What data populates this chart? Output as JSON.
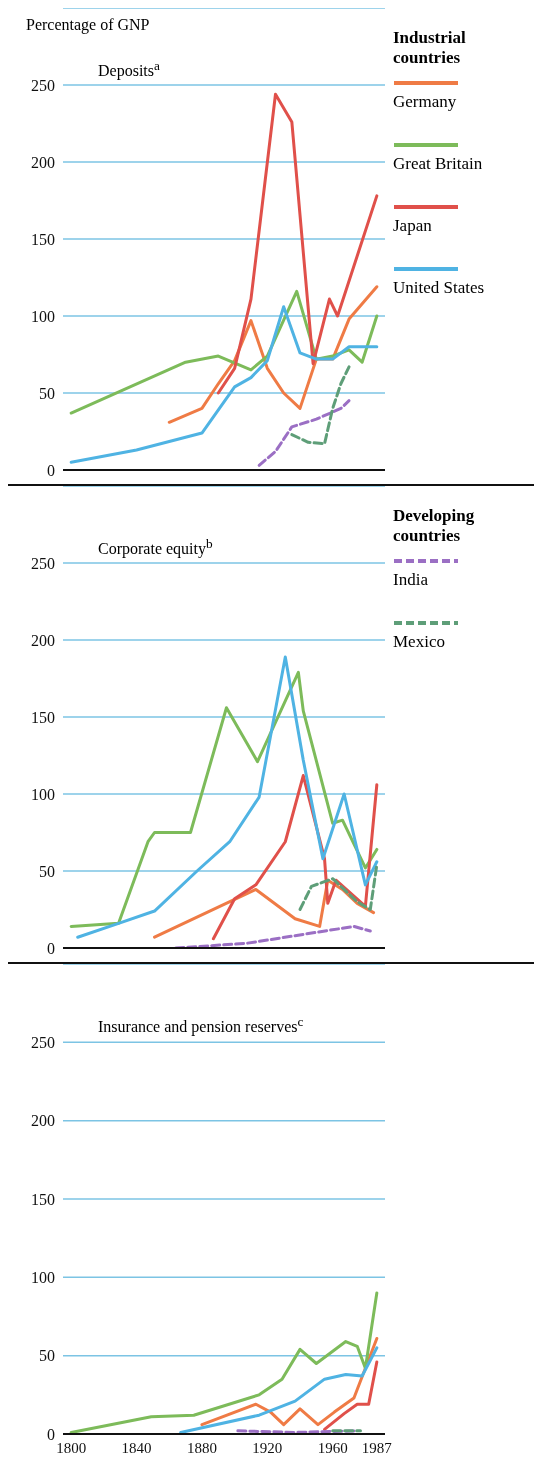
{
  "chart_data": [
    {
      "type": "line",
      "title": "Deposits$^{a}$",
      "ylabel": "Percentage of GNP",
      "legend_title": "Industrial countries",
      "legend": "right",
      "grid": "y",
      "tick_labels": "y",
      "xlim": [
        1795,
        1992
      ],
      "ylim": [
        0,
        300
      ],
      "yticks": [
        0,
        50,
        100,
        150,
        200,
        250
      ],
      "series": [
        {
          "name": "Germany",
          "color": "#ef7b45",
          "x": [
            1860,
            1880,
            1890,
            1900,
            1910,
            1920,
            1930,
            1940,
            1950,
            1960,
            1970,
            1987
          ],
          "values": [
            31,
            40,
            56,
            71,
            97,
            66,
            50,
            40,
            72,
            72,
            98,
            119
          ]
        },
        {
          "name": "Great Britain",
          "color": "#7dbb5a",
          "x": [
            1800,
            1870,
            1890,
            1910,
            1920,
            1938,
            1950,
            1960,
            1970,
            1978,
            1987
          ],
          "values": [
            37,
            70,
            74,
            65,
            74,
            116,
            72,
            74,
            78,
            70,
            100
          ]
        },
        {
          "name": "Japan",
          "color": "#e0504a",
          "x": [
            1890,
            1900,
            1910,
            1925,
            1935,
            1948,
            1958,
            1963,
            1987
          ],
          "values": [
            50,
            66,
            111,
            244,
            226,
            69,
            111,
            100,
            178
          ]
        },
        {
          "name": "United States",
          "color": "#4fb3e3",
          "x": [
            1800,
            1840,
            1880,
            1900,
            1910,
            1920,
            1930,
            1940,
            1950,
            1960,
            1970,
            1987
          ],
          "values": [
            5,
            13,
            24,
            54,
            60,
            71,
            106,
            76,
            72,
            72,
            80,
            80
          ]
        },
        {
          "color": "#9b6fc4",
          "line_style": "dashed",
          "x": [
            1915,
            1925,
            1935,
            1950,
            1965,
            1970
          ],
          "values": [
            3,
            12,
            28,
            33,
            40,
            45
          ]
        },
        {
          "color": "#5e9e78",
          "line_style": "dashed",
          "x": [
            1935,
            1945,
            1955,
            1960,
            1965,
            1970
          ],
          "values": [
            23,
            18,
            17,
            40,
            56,
            67
          ]
        }
      ]
    },
    {
      "type": "line",
      "title": "Corporate equity$^{b}$",
      "legend_title": "Developing countries",
      "legend": "right",
      "grid": "y",
      "tick_labels": "y",
      "xlim": [
        1795,
        1992
      ],
      "ylim": [
        0,
        300
      ],
      "yticks": [
        0,
        50,
        100,
        150,
        200,
        250
      ],
      "series": [
        {
          "color": "#ef7b45",
          "x": [
            1851,
            1913,
            1937,
            1952,
            1957,
            1966,
            1975,
            1985
          ],
          "values": [
            7,
            38,
            19,
            14,
            44,
            38,
            29,
            23
          ]
        },
        {
          "color": "#7dbb5a",
          "x": [
            1800,
            1829,
            1847,
            1851,
            1873,
            1895,
            1914,
            1939,
            1942,
            1960,
            1966,
            1980,
            1987
          ],
          "values": [
            14,
            16,
            69,
            75,
            75,
            156,
            121,
            179,
            154,
            81,
            83,
            52,
            64
          ]
        },
        {
          "color": "#e0504a",
          "x": [
            1887,
            1900,
            1913,
            1931,
            1942,
            1955,
            1957,
            1962,
            1980,
            1987
          ],
          "values": [
            6,
            32,
            41,
            69,
            112,
            58,
            29,
            44,
            27,
            106
          ]
        },
        {
          "color": "#4fb3e3",
          "x": [
            1804,
            1829,
            1851,
            1877,
            1897,
            1915,
            1931,
            1942,
            1954,
            1967,
            1980,
            1987
          ],
          "values": [
            7,
            16,
            24,
            50,
            69,
            98,
            189,
            122,
            58,
            100,
            41,
            56
          ]
        },
        {
          "name": "India",
          "color": "#9b6fc4",
          "line_style": "dashed",
          "x": [
            1864,
            1907,
            1937,
            1973,
            1983
          ],
          "values": [
            0,
            3,
            8,
            14,
            11
          ]
        },
        {
          "name": "Mexico",
          "color": "#5e9e78",
          "line_style": "dashed",
          "x": [
            1940,
            1947,
            1960,
            1975,
            1983,
            1987
          ],
          "values": [
            25,
            40,
            45,
            30,
            25,
            54
          ]
        }
      ]
    },
    {
      "type": "line",
      "title": "Insurance and pension reserves$^{c}$",
      "grid": "y",
      "xlim": [
        1795,
        1992
      ],
      "ylim": [
        0,
        300
      ],
      "yticks": [
        0,
        50,
        100,
        150,
        200,
        250
      ],
      "xticks": [
        1800,
        1840,
        1880,
        1920,
        1960,
        1987
      ],
      "series": [
        {
          "color": "#ef7b45",
          "x": [
            1880,
            1913,
            1922,
            1930,
            1940,
            1951,
            1961,
            1973,
            1987
          ],
          "values": [
            6,
            19,
            14,
            6,
            16,
            6,
            14,
            23,
            61
          ]
        },
        {
          "color": "#7dbb5a",
          "x": [
            1800,
            1849,
            1875,
            1915,
            1929,
            1940,
            1950,
            1968,
            1975,
            1980,
            1987
          ],
          "values": [
            1,
            11,
            12,
            25,
            35,
            54,
            45,
            59,
            56,
            42,
            90
          ]
        },
        {
          "color": "#e0504a",
          "x": [
            1955,
            1967,
            1975,
            1982,
            1987
          ],
          "values": [
            3,
            13,
            19,
            19,
            46
          ]
        },
        {
          "color": "#4fb3e3",
          "x": [
            1867,
            1915,
            1937,
            1955,
            1968,
            1978,
            1987
          ],
          "values": [
            1,
            12,
            21,
            35,
            38,
            37,
            55
          ]
        },
        {
          "color": "#9b6fc4",
          "line_style": "dashed",
          "x": [
            1902,
            1937,
            1975
          ],
          "values": [
            2,
            1,
            2
          ]
        },
        {
          "color": "#5e9e78",
          "line_style": "dashed",
          "x": [
            1960,
            1977
          ],
          "values": [
            2,
            2
          ]
        }
      ]
    }
  ]
}
